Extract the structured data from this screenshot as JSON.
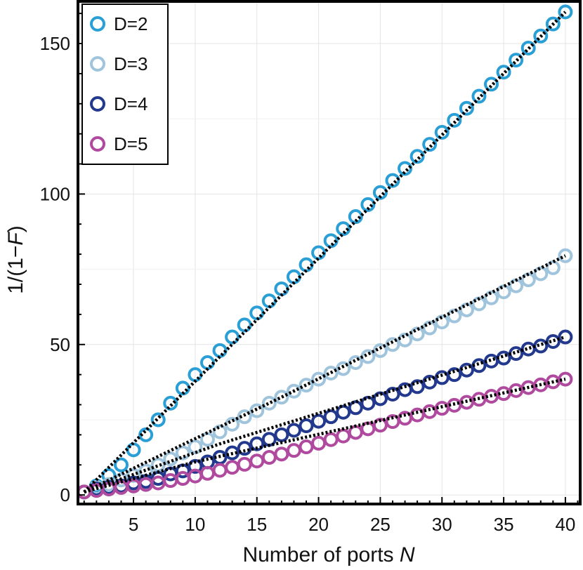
{
  "chart_data": {
    "type": "scatter",
    "xlabel": "Number of ports ",
    "xlabel_var": "N",
    "ylabel_pre": "1/(1−",
    "ylabel_var": "F",
    "ylabel_post": ")",
    "xlim": [
      0.5,
      41.2
    ],
    "ylim": [
      -3,
      164
    ],
    "xticks": [
      5,
      10,
      15,
      20,
      25,
      30,
      35,
      40
    ],
    "yticks": [
      0,
      50,
      100,
      150
    ],
    "xtick_labels": [
      "5",
      "10",
      "15",
      "20",
      "25",
      "30",
      "35",
      "40"
    ],
    "ytick_labels": [
      "0",
      "50",
      "100",
      "150"
    ],
    "grid": true,
    "legend_position": "top-left",
    "series": [
      {
        "name": "D=2",
        "color": "#2a9fd6",
        "x": [
          1,
          2,
          3,
          4,
          5,
          6,
          7,
          8,
          9,
          10,
          11,
          12,
          13,
          14,
          15,
          16,
          17,
          18,
          19,
          20,
          21,
          22,
          23,
          24,
          25,
          26,
          27,
          28,
          29,
          30,
          31,
          32,
          33,
          34,
          35,
          36,
          37,
          38,
          39,
          40
        ],
        "y": [
          1,
          3,
          6.5,
          10,
          15,
          20,
          25,
          30.5,
          35.5,
          40,
          44,
          48,
          52.5,
          56.5,
          60.5,
          64.5,
          68.5,
          72.5,
          76.5,
          80.5,
          84.5,
          88.5,
          92.5,
          96.5,
          100.5,
          104.5,
          108.5,
          112.5,
          116.5,
          120.5,
          124.5,
          128.5,
          132.5,
          136.5,
          140.5,
          144.5,
          148.5,
          152.5,
          156.5,
          160.5
        ]
      },
      {
        "name": "D=3",
        "color": "#9fc4dc",
        "x": [
          1,
          2,
          3,
          4,
          5,
          6,
          7,
          8,
          9,
          10,
          11,
          12,
          13,
          14,
          15,
          16,
          17,
          18,
          19,
          20,
          21,
          22,
          23,
          24,
          25,
          26,
          27,
          28,
          29,
          30,
          31,
          32,
          33,
          34,
          35,
          36,
          37,
          38,
          39,
          40
        ],
        "y": [
          1,
          2.5,
          3.5,
          5,
          6.5,
          8,
          10,
          12,
          14,
          16,
          18.5,
          21,
          23.5,
          26,
          28,
          30.5,
          32.5,
          34.5,
          36.5,
          38.5,
          40.5,
          42,
          44,
          46,
          48,
          50,
          51.5,
          53.5,
          55.5,
          57.5,
          59.5,
          61.5,
          63.5,
          65.5,
          67.5,
          69.5,
          71.5,
          73.5,
          75.5,
          79.5
        ]
      },
      {
        "name": "D=4",
        "color": "#22398e",
        "x": [
          1,
          2,
          3,
          4,
          5,
          6,
          7,
          8,
          9,
          10,
          11,
          12,
          13,
          14,
          15,
          16,
          17,
          18,
          19,
          20,
          21,
          22,
          23,
          24,
          25,
          26,
          27,
          28,
          29,
          30,
          31,
          32,
          33,
          34,
          35,
          36,
          37,
          38,
          39,
          40
        ],
        "y": [
          1,
          2,
          2.5,
          3,
          4,
          4.5,
          5.5,
          7,
          8,
          9.5,
          11,
          12.5,
          14,
          15.5,
          17,
          18.5,
          20,
          21.5,
          23,
          24.5,
          26,
          27.5,
          29,
          30.5,
          32,
          33.5,
          35,
          36,
          37.5,
          39,
          40,
          41.5,
          43,
          44.5,
          45.5,
          47,
          48.5,
          49.5,
          51,
          52.5
        ]
      },
      {
        "name": "D=5",
        "color": "#b04a9e",
        "x": [
          1,
          2,
          3,
          4,
          5,
          6,
          7,
          8,
          9,
          10,
          11,
          12,
          13,
          14,
          15,
          16,
          17,
          18,
          19,
          20,
          21,
          22,
          23,
          24,
          25,
          26,
          27,
          28,
          29,
          30,
          31,
          32,
          33,
          34,
          35,
          36,
          37,
          38,
          39,
          40
        ],
        "y": [
          1,
          1.5,
          2,
          2.5,
          3,
          3.5,
          4,
          4.8,
          5.5,
          6.3,
          7.2,
          8.2,
          9.2,
          10.2,
          11.3,
          12.5,
          13.6,
          14.8,
          16,
          17.2,
          18.4,
          19.6,
          20.8,
          22,
          23.2,
          24.4,
          25.5,
          26.6,
          27.7,
          28.8,
          29.8,
          30.8,
          31.8,
          32.8,
          33.7,
          34.7,
          35.7,
          36.6,
          37.6,
          38.5
        ]
      }
    ],
    "fit_lines": [
      {
        "x": [
          1,
          40
        ],
        "y": [
          1,
          160.5
        ]
      },
      {
        "x": [
          1,
          17,
          40
        ],
        "y": [
          1,
          32.5,
          79.5
        ]
      },
      {
        "x": [
          1,
          12,
          40
        ],
        "y": [
          1,
          17,
          52.5
        ]
      },
      {
        "x": [
          1,
          10,
          40
        ],
        "y": [
          1,
          11,
          38.5
        ]
      }
    ]
  }
}
